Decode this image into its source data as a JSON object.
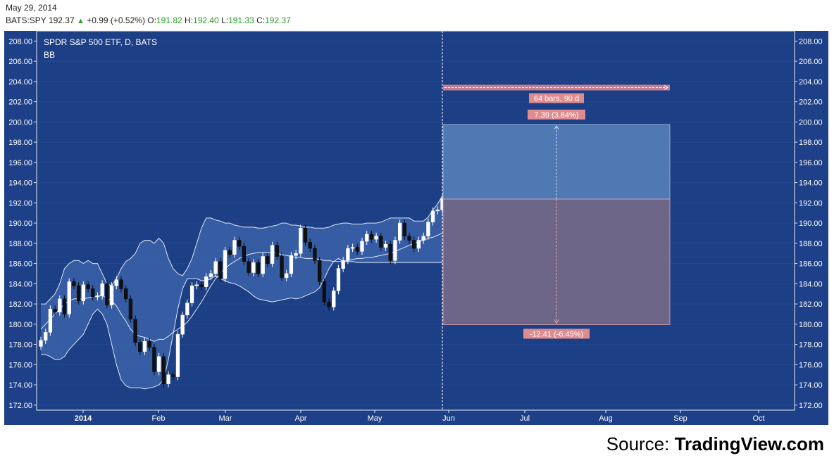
{
  "header": {
    "date": "May 29, 2014",
    "symbol": "BATS:SPY",
    "last": "192.37",
    "change": "+0.99 (+0.52%)",
    "o_label": "O:",
    "o": "191.82",
    "h_label": "H:",
    "h": "192.40",
    "l_label": "L:",
    "l": "191.33",
    "c_label": "C:",
    "c": "192.37"
  },
  "source": {
    "prefix": "Source: ",
    "brand": "TradingView.com"
  },
  "colors": {
    "background": "#1e4088",
    "pane": "#1d3f86",
    "band_fill": "#3b62a8",
    "profit": "#5079b4",
    "loss": "#6e6689",
    "label_bg": "#e08b8e",
    "up": "#ffffff",
    "down": "#111111"
  },
  "chart_data": {
    "type": "candlestick",
    "title": "SPDR S&P 500 ETF, D, BATS",
    "indicator": "BB",
    "ylim": [
      171.5,
      209
    ],
    "y_ticks": [
      "172.00",
      "174.00",
      "176.00",
      "178.00",
      "180.00",
      "182.00",
      "184.00",
      "186.00",
      "188.00",
      "190.00",
      "192.00",
      "194.00",
      "196.00",
      "198.00",
      "200.00",
      "202.00",
      "204.00",
      "206.00",
      "208.00"
    ],
    "x_labels": [
      "2014",
      "Feb",
      "Mar",
      "Apr",
      "May",
      "Jun",
      "Jul",
      "Aug",
      "Sep",
      "Oct"
    ],
    "closes": [
      178.4,
      179.2,
      181.5,
      181.2,
      182.5,
      181.0,
      184.2,
      183.8,
      182.3,
      183.9,
      183.5,
      182.7,
      182.8,
      184.0,
      181.9,
      183.8,
      184.4,
      183.5,
      182.5,
      180.5,
      178.2,
      177.3,
      178.3,
      177.7,
      175.3,
      176.8,
      174.1,
      175.0,
      174.8,
      179.0,
      180.9,
      182.1,
      183.8,
      183.9,
      183.7,
      184.7,
      185.0,
      186.2,
      184.5,
      187.3,
      186.9,
      188.3,
      187.7,
      186.2,
      185.1,
      186.1,
      185.0,
      186.7,
      186.0,
      187.8,
      186.7,
      184.6,
      185.0,
      186.8,
      187.0,
      189.5,
      188.1,
      187.5,
      186.3,
      184.2,
      182.2,
      181.7,
      183.3,
      185.5,
      186.3,
      187.5,
      187.6,
      187.2,
      188.2,
      188.9,
      188.4,
      188.7,
      187.6,
      187.9,
      186.3,
      188.3,
      190.0,
      188.7,
      188.3,
      187.5,
      188.3,
      188.7,
      190.1,
      191.2,
      191.3,
      192.4
    ],
    "bb_upper": [
      182.0,
      182.0,
      182.5,
      183.0,
      184.0,
      185.5,
      186.0,
      186.3,
      186.3,
      186.0,
      186.3,
      186.0,
      186.0,
      185.0,
      184.0,
      183.8,
      184.5,
      185.5,
      186.2,
      186.5,
      187.0,
      188.0,
      188.3,
      188.3,
      188.0,
      188.5,
      188.0,
      186.5,
      185.5,
      185.0,
      184.8,
      185.5,
      186.5,
      188.0,
      189.5,
      190.5,
      190.5,
      190.3,
      190.2,
      190.0,
      190.0,
      189.8,
      189.7,
      189.6,
      189.6,
      189.6,
      189.5,
      189.5,
      189.6,
      189.7,
      189.8,
      190.0,
      190.0,
      189.8,
      189.8,
      189.7,
      189.6,
      189.6,
      189.5,
      189.5,
      189.5,
      189.6,
      189.8,
      189.9,
      190.0,
      190.0,
      189.9,
      189.9,
      189.9,
      190.0,
      190.0,
      190.0,
      190.1,
      190.3,
      190.5,
      190.5,
      190.5,
      190.5,
      190.5,
      190.2,
      190.2,
      190.2,
      190.6,
      191.3,
      191.9,
      192.7
    ],
    "bb_middle": [
      179.5,
      180.0,
      180.5,
      181.0,
      181.5,
      182.0,
      182.3,
      182.5,
      182.5,
      182.5,
      182.6,
      182.7,
      182.8,
      182.8,
      182.6,
      182.3,
      181.8,
      181.0,
      180.3,
      179.5,
      179.0,
      178.8,
      178.7,
      178.5,
      178.3,
      178.5,
      178.5,
      178.8,
      179.2,
      179.5,
      179.8,
      180.2,
      180.8,
      181.5,
      182.2,
      183.0,
      183.8,
      184.5,
      185.0,
      185.5,
      185.9,
      186.2,
      186.5,
      186.7,
      186.9,
      187.0,
      187.1,
      187.1,
      187.1,
      187.1,
      187.0,
      186.9,
      186.8,
      186.7,
      186.6,
      186.6,
      186.5,
      186.5,
      186.5,
      186.4,
      186.3,
      186.3,
      186.2,
      186.2,
      186.2,
      186.3,
      186.4,
      186.5,
      186.5,
      186.6,
      186.6,
      186.7,
      186.8,
      186.9,
      187.0,
      187.2,
      187.4,
      187.6,
      187.8,
      188.0,
      188.2,
      188.3,
      188.5,
      188.6,
      188.8,
      189.0
    ],
    "bb_lower": [
      177.0,
      177.0,
      176.8,
      176.5,
      176.5,
      176.8,
      177.5,
      178.0,
      178.5,
      179.0,
      180.0,
      181.0,
      181.5,
      181.0,
      180.0,
      178.0,
      176.0,
      174.5,
      173.9,
      173.7,
      173.7,
      173.7,
      173.6,
      173.7,
      173.8,
      174.0,
      174.5,
      176.5,
      179.0,
      181.5,
      183.5,
      184.5,
      184.5,
      184.5,
      184.3,
      184.3,
      184.5,
      184.8,
      184.5,
      184.3,
      184.1,
      184.0,
      183.8,
      183.5,
      183.2,
      182.8,
      182.5,
      182.4,
      182.3,
      182.2,
      182.3,
      182.4,
      182.5,
      182.6,
      182.5,
      182.6,
      182.8,
      183.0,
      183.2,
      183.6,
      184.5,
      185.5,
      186.2,
      186.5,
      186.2,
      186.2,
      186.2,
      186.1,
      186.1,
      186.1,
      186.1,
      186.1,
      186.1,
      186.1,
      186.1,
      186.1,
      186.1,
      186.1,
      186.1,
      186.1,
      186.1,
      186.1,
      186.1,
      186.1,
      186.1,
      186.1
    ],
    "position": {
      "entry": 192.37,
      "target": 199.76,
      "stop": 179.96,
      "target_label": "7.39 (3.84%)",
      "stop_label": "-12.41 (-6.45%)",
      "range_label": "64 bars, 90 d",
      "range_price": 203.4
    }
  }
}
